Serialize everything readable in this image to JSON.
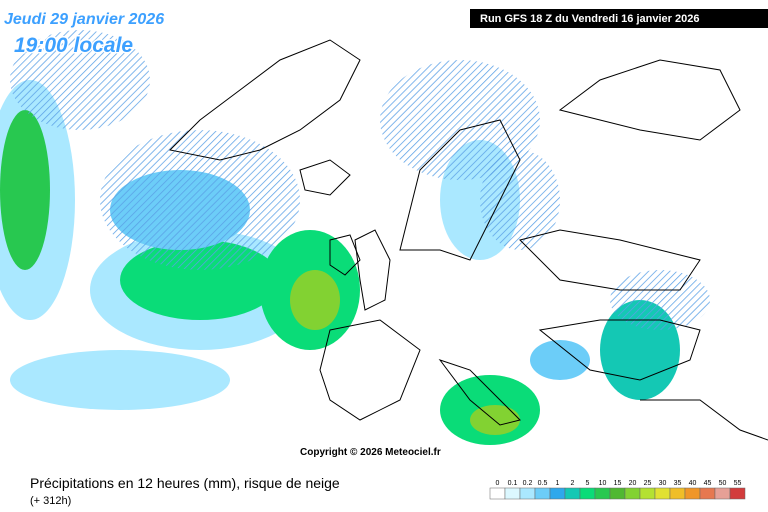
{
  "header": {
    "date": "Jeudi 29 janvier 2026",
    "time": "19:00 locale",
    "run": "Run GFS 18 Z du Vendredi 16 janvier 2026"
  },
  "copyright": "Copyright © 2026 Meteociel.fr",
  "footer": {
    "title": "Précipitations en 12 heures (mm), risque de neige",
    "lead": "(+ 312h)"
  },
  "legend": [
    {
      "label": "0",
      "color": "#ffffff"
    },
    {
      "label": "0.1",
      "color": "#dcf8ff"
    },
    {
      "label": "0.2",
      "color": "#aae8ff"
    },
    {
      "label": "0.5",
      "color": "#6ccdf8"
    },
    {
      "label": "1",
      "color": "#2ea8ec"
    },
    {
      "label": "2",
      "color": "#14c8b4"
    },
    {
      "label": "5",
      "color": "#0adc78"
    },
    {
      "label": "10",
      "color": "#28c850"
    },
    {
      "label": "15",
      "color": "#50b832"
    },
    {
      "label": "20",
      "color": "#82d232"
    },
    {
      "label": "25",
      "color": "#b4e132"
    },
    {
      "label": "30",
      "color": "#e1e132"
    },
    {
      "label": "35",
      "color": "#f0be28"
    },
    {
      "label": "40",
      "color": "#f09628"
    },
    {
      "label": "45",
      "color": "#e67850"
    },
    {
      "label": "50",
      "color": "#e6a096"
    },
    {
      "label": "55",
      "color": "#d23c3c"
    }
  ]
}
